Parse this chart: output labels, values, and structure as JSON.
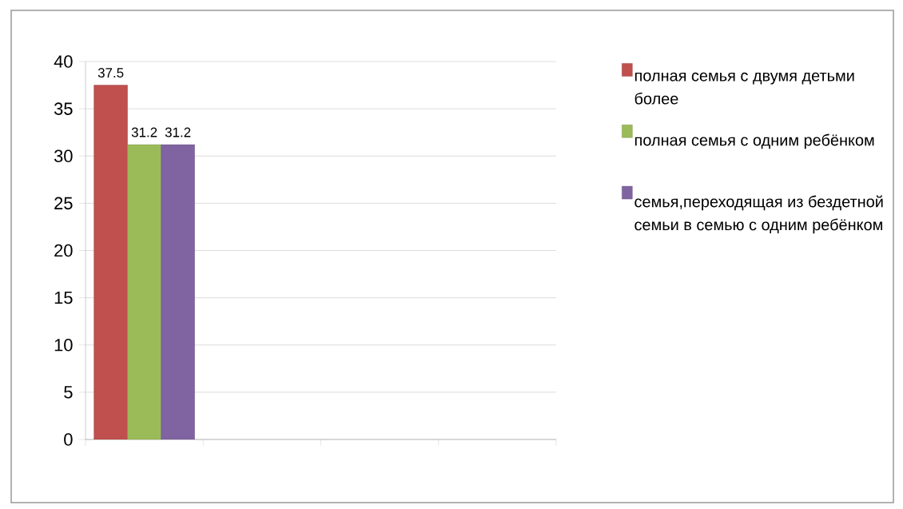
{
  "chart_data": {
    "type": "bar",
    "categories": [
      null,
      null,
      null,
      null
    ],
    "series": [
      {
        "name": "полная семья с двумя детьми  более",
        "color": "#c0504d",
        "values": [
          37.5,
          null,
          null,
          null
        ]
      },
      {
        "name": "полная семья с одним ребёнком",
        "color": "#9bbb59",
        "values": [
          31.2,
          null,
          null,
          null
        ]
      },
      {
        "name": "семья,переходящая из бездетной семьи в семью с одним ребёнком",
        "color": "#8064a2",
        "values": [
          31.2,
          null,
          null,
          null
        ]
      }
    ],
    "ylim": [
      0,
      40
    ],
    "yticks": [
      0,
      5,
      10,
      15,
      20,
      25,
      30,
      35,
      40
    ],
    "grid": "y",
    "legend": "right",
    "data_labels": true
  }
}
